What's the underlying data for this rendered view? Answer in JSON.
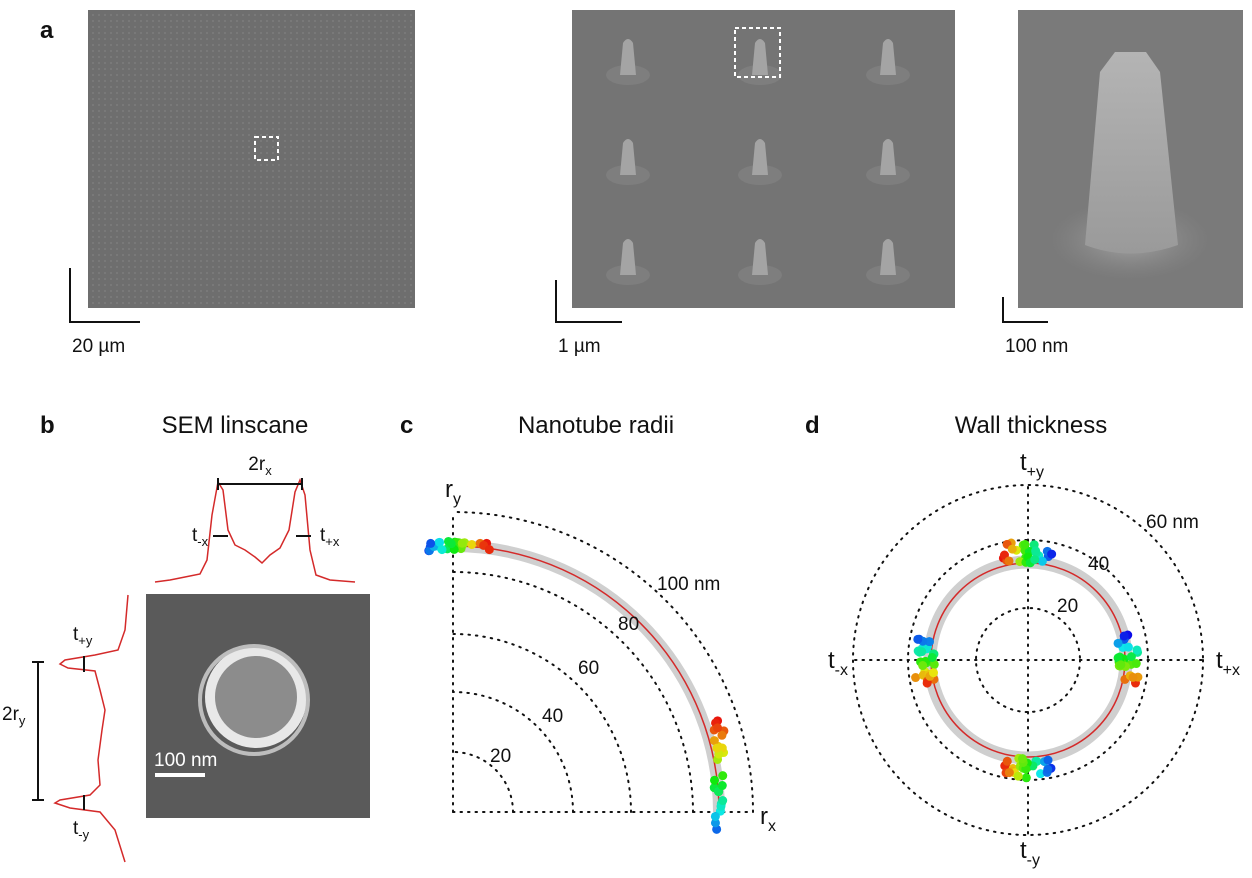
{
  "panels": {
    "a": {
      "label": "a",
      "scale_bars": [
        "20 µm",
        "1 µm",
        "100 nm"
      ]
    },
    "b": {
      "label": "b",
      "title": "SEM linscane",
      "diameter_x": {
        "main": "2r",
        "sub": "x"
      },
      "diameter_y": {
        "main": "2r",
        "sub": "y"
      },
      "t_minus_x": {
        "main": "t",
        "sub": "-x"
      },
      "t_plus_x": {
        "main": "t",
        "sub": "+x"
      },
      "t_plus_y": {
        "main": "t",
        "sub": "+y"
      },
      "t_minus_y": {
        "main": "t",
        "sub": "-y"
      },
      "scale_bar": "100 nm"
    },
    "c": {
      "label": "c",
      "title": "Nanotube radii",
      "axis_y": {
        "main": "r",
        "sub": "y"
      },
      "axis_x": {
        "main": "r",
        "sub": "x"
      },
      "ring_labels": [
        "20",
        "40",
        "60",
        "80",
        "100 nm"
      ]
    },
    "d": {
      "label": "d",
      "title": "Wall thickness",
      "t_plus_y": {
        "main": "t",
        "sub": "+y"
      },
      "t_minus_y": {
        "main": "t",
        "sub": "-y"
      },
      "t_minus_x": {
        "main": "t",
        "sub": "-x"
      },
      "t_plus_x": {
        "main": "t",
        "sub": "+x"
      },
      "ring_labels": [
        "20",
        "40",
        "60 nm"
      ]
    }
  }
}
